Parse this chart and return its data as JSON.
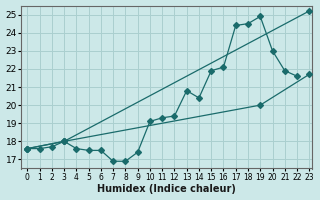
{
  "xlabel": "Humidex (Indice chaleur)",
  "ylabel": "",
  "bg_color": "#cce8e8",
  "line_color": "#1a6b6b",
  "grid_color": "#aacfcf",
  "xlim": [
    -0.5,
    23.2
  ],
  "ylim": [
    16.5,
    25.5
  ],
  "xticks": [
    0,
    1,
    2,
    3,
    4,
    5,
    6,
    7,
    8,
    9,
    10,
    11,
    12,
    13,
    14,
    15,
    16,
    17,
    18,
    19,
    20,
    21,
    22,
    23
  ],
  "yticks": [
    17,
    18,
    19,
    20,
    21,
    22,
    23,
    24,
    25
  ],
  "line1_x": [
    0,
    1,
    2,
    3,
    4,
    5,
    6,
    7,
    8,
    9,
    10,
    11,
    12,
    13,
    14,
    15,
    16,
    17,
    18,
    19,
    20,
    21,
    22
  ],
  "line1_y": [
    17.6,
    17.6,
    17.7,
    18.0,
    17.6,
    17.5,
    17.5,
    16.9,
    16.9,
    17.4,
    19.1,
    19.3,
    19.4,
    20.8,
    20.4,
    21.9,
    22.1,
    24.4,
    24.5,
    24.9,
    23.0,
    21.9,
    21.6
  ],
  "line2_x": [
    0,
    3,
    23
  ],
  "line2_y": [
    17.6,
    18.0,
    25.2
  ],
  "line3_x": [
    0,
    3,
    19,
    23
  ],
  "line3_y": [
    17.6,
    18.0,
    20.0,
    21.7
  ]
}
